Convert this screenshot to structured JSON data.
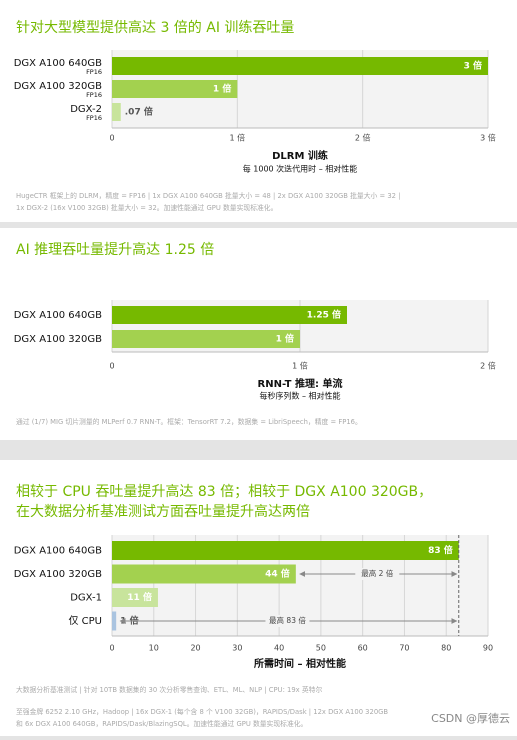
{
  "chart_data": [
    {
      "type": "bar",
      "orientation": "horizontal",
      "title": "针对大型模型提供高达 3 倍的 AI 训练吞吐量",
      "categories": [
        "DGX A100 640GB",
        "DGX A100 320GB",
        "DGX-2"
      ],
      "category_notes": [
        "FP16",
        "FP16",
        "FP16"
      ],
      "values": [
        3,
        1,
        0.07
      ],
      "value_labels": [
        "3 倍",
        "1 倍",
        ".07 倍"
      ],
      "colors": [
        "#76b900",
        "#a3d14f",
        "#c8e49c"
      ],
      "xlim": [
        0,
        3
      ],
      "xticks": [
        0,
        {
          "value": 1,
          "label": "1 倍"
        },
        {
          "value": 2,
          "label": "2 倍"
        },
        {
          "value": 3,
          "label": "3 倍"
        }
      ],
      "x_label": "DLRM 训练",
      "x_sublabel": "每 1000 次迭代用时 – 相对性能",
      "grid": true,
      "footnote": [
        "HugeCTR 框架上的 DLRM，精度 = FP16 | 1x DGX A100 640GB 批量大小 = 48 | 2x DGX A100 320GB 批量大小 = 32 |",
        "1x DGX-2 (16x V100 32GB) 批量大小 = 32。加速性能通过 GPU 数量实现标准化。"
      ]
    },
    {
      "type": "bar",
      "orientation": "horizontal",
      "title": "AI 推理吞吐量提升高达 1.25 倍",
      "categories": [
        "DGX A100 640GB",
        "DGX A100 320GB"
      ],
      "values": [
        1.25,
        1
      ],
      "value_labels": [
        "1.25 倍",
        "1 倍"
      ],
      "colors": [
        "#76b900",
        "#a3d14f"
      ],
      "xlim": [
        0,
        2
      ],
      "xticks": [
        0,
        {
          "value": 1,
          "label": "1 倍"
        },
        {
          "value": 2,
          "label": "2 倍"
        }
      ],
      "x_label": "RNN-T 推理: 单流",
      "x_sublabel": "每秒序列数 – 相对性能",
      "grid": true,
      "footnote": [
        "通过 (1/7) MIG 切片测量的 MLPerf 0.7 RNN-T。框架：TensorRT 7.2，数据集 = LibriSpeech，精度 = FP16。"
      ]
    },
    {
      "type": "bar",
      "orientation": "horizontal",
      "title": [
        "相较于 CPU 吞吐量提升高达 83 倍；相较于 DGX A100 320GB，",
        "在大数据分析基准测试方面吞吐量提升高达两倍"
      ],
      "categories": [
        "DGX A100 640GB",
        "DGX A100 320GB",
        "DGX-1",
        "仅 CPU"
      ],
      "values": [
        83,
        44,
        11,
        1
      ],
      "value_labels": [
        "83 倍",
        "44 倍",
        "11 倍",
        "1 倍"
      ],
      "colors": [
        "#76b900",
        "#a3d14f",
        "#c8e49c",
        "#aac4e0"
      ],
      "xlim": [
        0,
        90
      ],
      "xticks": [
        0,
        10,
        20,
        30,
        40,
        50,
        60,
        70,
        80,
        90
      ],
      "x_label": "所需时间 – 相对性能",
      "grid": true,
      "reference_line": 83,
      "annotations": [
        {
          "text": "最高 2 倍",
          "category": "DGX A100 320GB",
          "x_range": [
            44,
            83
          ]
        },
        {
          "text": "最高 83 倍",
          "category": "仅 CPU",
          "x_range": [
            1,
            83
          ]
        }
      ],
      "footnote": [
        "大数据分析基准测试 | 针对 10TB 数据集的 30 次分析零售查询、ETL、ML、NLP | CPU: 19x 英特尔",
        "至强金牌 6252 2.10 GHz，Hadoop | 16x DGX-1 (每个含 8 个 V100 32GB)，RAPIDS/Dask | 12x DGX A100 320GB",
        "和 6x DGX A100 640GB，RAPIDS/Dask/BlazingSQL。加速性能通过 GPU 数量实现标准化。"
      ]
    }
  ],
  "watermark": "CSDN @厚德云"
}
